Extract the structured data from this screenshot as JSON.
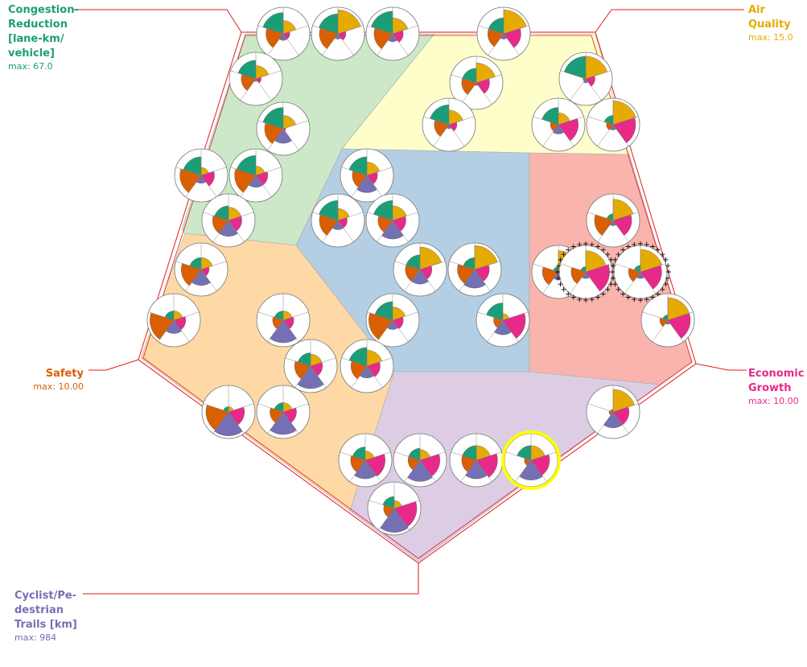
{
  "colors": {
    "congestion": "#1b9e77",
    "air": "#e6ab02",
    "economic": "#e7298a",
    "trails": "#7570b3",
    "safety": "#d95f02",
    "selection": "#ffff00",
    "frame": "#e31a1c",
    "zone_congestion": "#cce8c8",
    "zone_air": "#fefecb",
    "zone_center": "#b4cfe3",
    "zone_economic": "#f8b4ad",
    "zone_trails": "#ddcde4",
    "zone_safety": "#fed9a6"
  },
  "chart_data": {
    "type": "polar-glyph-map",
    "axes": [
      {
        "id": "congestion",
        "label": "Congestion-Reduction [lane-km/ vehicle]",
        "max_label": "max: 67.0",
        "max": 67.0
      },
      {
        "id": "air",
        "label": "Air Quality",
        "max_label": "max: 15.0",
        "max": 15.0
      },
      {
        "id": "economic",
        "label": "Economic Growth",
        "max_label": "max: 10.00",
        "max": 10.0
      },
      {
        "id": "trails",
        "label": "Cyclist/Pe- destrian Trails [km]",
        "max_label": "max: 984",
        "max": 984
      },
      {
        "id": "safety",
        "label": "Safety",
        "max_label": "max: 10.00",
        "max": 10.0
      }
    ],
    "zones": [
      "congestion",
      "air",
      "center",
      "economic",
      "trails",
      "safety"
    ],
    "glyph_order": [
      "congestion",
      "air",
      "economic",
      "trails",
      "safety"
    ],
    "glyphs": [
      {
        "zone": "congestion",
        "values": [
          0.8,
          0.5,
          0.25,
          0.25,
          0.65
        ]
      },
      {
        "zone": "congestion",
        "values": [
          0.75,
          0.9,
          0.3,
          0.2,
          0.7
        ]
      },
      {
        "zone": "congestion",
        "values": [
          0.85,
          0.6,
          0.4,
          0.3,
          0.7
        ]
      },
      {
        "zone": "congestion",
        "values": [
          0.7,
          0.5,
          0.2,
          0.1,
          0.55
        ]
      },
      {
        "zone": "congestion",
        "values": [
          0.8,
          0.5,
          0.1,
          0.55,
          0.7
        ]
      },
      {
        "zone": "congestion",
        "values": [
          0.7,
          0.3,
          0.5,
          0.3,
          0.8
        ]
      },
      {
        "zone": "congestion",
        "values": [
          0.75,
          0.35,
          0.45,
          0.45,
          0.8
        ]
      },
      {
        "zone": "congestion",
        "values": [
          0.55,
          0.5,
          0.5,
          0.6,
          0.6
        ]
      },
      {
        "zone": "air",
        "values": [
          0.6,
          0.9,
          0.65,
          0.2,
          0.6
        ]
      },
      {
        "zone": "air",
        "values": [
          0.55,
          0.75,
          0.5,
          0.1,
          0.55
        ]
      },
      {
        "zone": "air",
        "values": [
          0.85,
          0.85,
          0.35,
          0.15,
          0.1
        ]
      },
      {
        "zone": "air",
        "values": [
          0.75,
          0.55,
          0.3,
          0.15,
          0.55
        ]
      },
      {
        "zone": "air",
        "values": [
          0.65,
          0.45,
          0.75,
          0.35,
          0.3
        ]
      },
      {
        "zone": "air",
        "values": [
          0.35,
          0.9,
          0.85,
          0.2,
          0.25
        ]
      },
      {
        "zone": "center",
        "values": [
          0.7,
          0.5,
          0.4,
          0.65,
          0.55
        ]
      },
      {
        "zone": "center",
        "values": [
          0.75,
          0.45,
          0.35,
          0.35,
          0.7
        ]
      },
      {
        "zone": "center",
        "values": [
          0.75,
          0.55,
          0.5,
          0.7,
          0.55
        ]
      },
      {
        "zone": "center",
        "values": [
          0.55,
          0.85,
          0.45,
          0.55,
          0.55
        ]
      },
      {
        "zone": "center",
        "values": [
          0.45,
          0.9,
          0.55,
          0.7,
          0.65
        ]
      },
      {
        "zone": "center",
        "values": [
          0.7,
          0.5,
          0.4,
          0.35,
          0.9
        ]
      },
      {
        "zone": "center",
        "values": [
          0.65,
          0.25,
          0.85,
          0.55,
          0.35
        ]
      },
      {
        "zone": "economic",
        "values": [
          0.25,
          0.8,
          0.7,
          0.2,
          0.7
        ]
      },
      {
        "zone": "economic",
        "values": [
          0.2,
          0.8,
          0.85,
          0.3,
          0.6
        ]
      },
      {
        "zone": "economic",
        "values": [
          0.2,
          0.8,
          0.9,
          0.25,
          0.55
        ],
        "highlight": "dotted"
      },
      {
        "zone": "economic",
        "values": [
          0.2,
          0.85,
          0.85,
          0.15,
          0.3
        ]
      },
      {
        "zone": "economic",
        "values": [
          0.25,
          0.85,
          0.8,
          0.25,
          0.45
        ],
        "highlight": "dotted"
      },
      {
        "zone": "safety",
        "values": [
          0.45,
          0.45,
          0.3,
          0.6,
          0.75
        ]
      },
      {
        "zone": "safety",
        "values": [
          0.35,
          0.35,
          0.45,
          0.5,
          0.9
        ]
      },
      {
        "zone": "safety",
        "values": [
          0.35,
          0.35,
          0.4,
          0.85,
          0.4
        ]
      },
      {
        "zone": "safety",
        "values": [
          0.5,
          0.45,
          0.45,
          0.85,
          0.6
        ]
      },
      {
        "zone": "safety",
        "values": [
          0.7,
          0.6,
          0.5,
          0.45,
          0.6
        ]
      },
      {
        "zone": "safety",
        "values": [
          0.2,
          0.2,
          0.6,
          0.9,
          0.85
        ]
      },
      {
        "zone": "safety",
        "values": [
          0.35,
          0.35,
          0.5,
          0.85,
          0.5
        ]
      },
      {
        "zone": "trails",
        "values": [
          0.1,
          0.85,
          0.6,
          0.6,
          0.15
        ]
      },
      {
        "zone": "trails",
        "values": [
          0.5,
          0.35,
          0.75,
          0.7,
          0.55
        ]
      },
      {
        "zone": "trails",
        "values": [
          0.45,
          0.4,
          0.75,
          0.8,
          0.45
        ]
      },
      {
        "zone": "trails",
        "values": [
          0.55,
          0.55,
          0.8,
          0.7,
          0.55
        ]
      },
      {
        "zone": "trails",
        "values": [
          0.55,
          0.55,
          0.7,
          0.75,
          0.25
        ],
        "highlight": "selected"
      },
      {
        "zone": "trails",
        "values": [
          0.45,
          0.3,
          0.85,
          0.9,
          0.4
        ]
      }
    ]
  }
}
